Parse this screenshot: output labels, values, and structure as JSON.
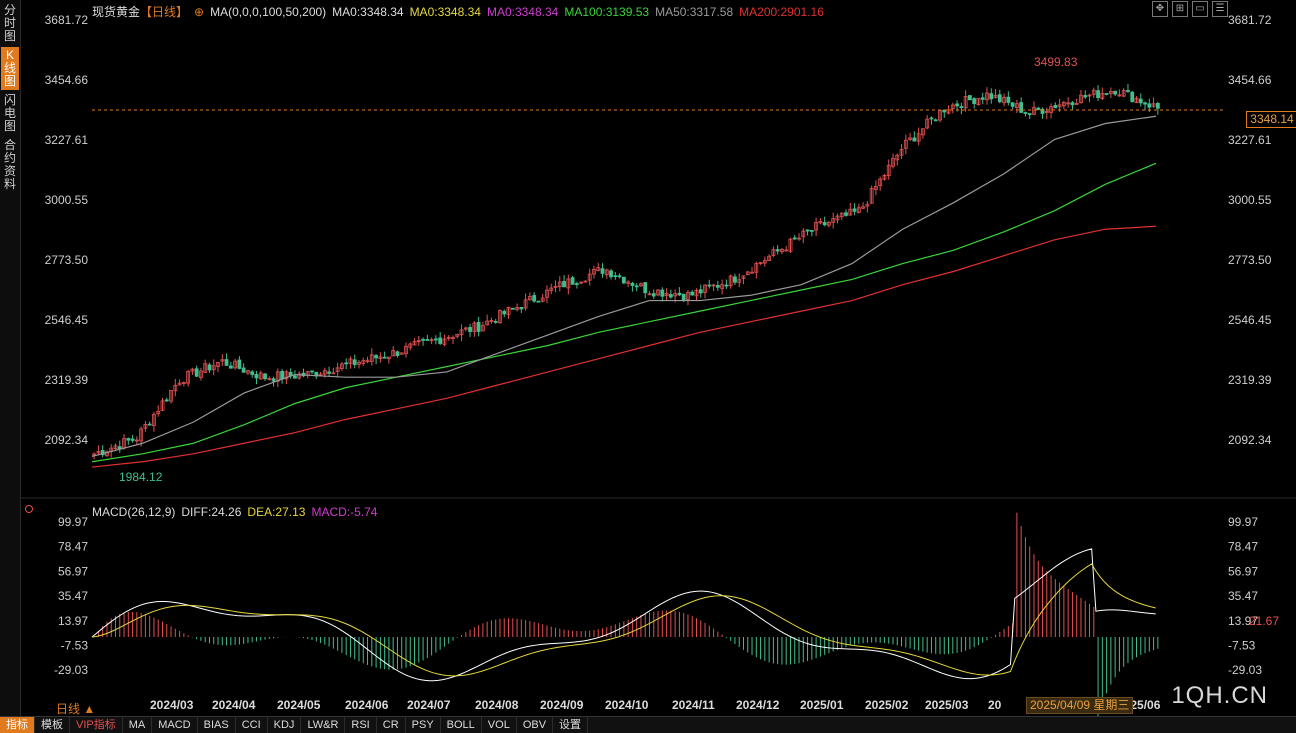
{
  "sidebar": {
    "tabs": [
      {
        "label": "分时图",
        "active": false
      },
      {
        "label": "K线图",
        "active": true
      },
      {
        "label": "闪电图",
        "active": false
      },
      {
        "label": "合约资料",
        "active": false
      }
    ]
  },
  "legend": {
    "symbol": "现货黄金",
    "period": "【日线】",
    "add_icon": "⊕",
    "ma_params": "MA(0,0,0,100,50,200)",
    "ma0_a": "MA0:3348.34",
    "ma0_b": "MA0:3348.34",
    "ma0_c": "MA0:3348.34",
    "ma100": "MA100:3139.53",
    "ma50": "MA50:3317.58",
    "ma200": "MA200:2901.16"
  },
  "colors": {
    "up": "#e45050",
    "down": "#3fbf8f",
    "ma100": "#3ad43a",
    "ma50": "#9a9a9a",
    "ma200": "#e03030",
    "dif": "#ffffff",
    "dea": "#e6d83a",
    "accent": "#e07a1f"
  },
  "price_axis": {
    "labels": [
      "3681.72",
      "3454.66",
      "3227.61",
      "3000.55",
      "2773.50",
      "2546.45",
      "2319.39",
      "2092.34"
    ]
  },
  "current_price": "3348.14",
  "high_label": "3499.83",
  "low_label": "1984.12",
  "macd_legend": {
    "params": "MACD(26,12,9)",
    "diff": "DIFF:24.26",
    "dea": "DEA:27.13",
    "macd": "MACD:-5.74"
  },
  "macd_axis": {
    "labels": [
      "99.97",
      "78.47",
      "56.97",
      "35.47",
      "13.97",
      "-7.53",
      "-29.03"
    ]
  },
  "macd_current": "21.67",
  "x_axis": {
    "labels": [
      "2024/03",
      "2024/04",
      "2024/05",
      "2024/06",
      "2024/07",
      "2024/08",
      "2024/09",
      "2024/10",
      "2024/11",
      "2024/12",
      "2025/01",
      "2025/02",
      "2025/03",
      "20",
      "2025/06"
    ]
  },
  "crosshair_date": "2025/04/09 星期三",
  "period_label": "日线 ▲",
  "watermark": "1QH.CN",
  "toolbar_icons": [
    "expand-icon",
    "grid-icon",
    "window-icon",
    "menu-icon"
  ],
  "bottom_bar": {
    "items": [
      {
        "label": "指标",
        "active": true,
        "vip": false
      },
      {
        "label": "模板",
        "active": false,
        "vip": false
      },
      {
        "label": "VIP指标",
        "active": false,
        "vip": true
      },
      {
        "label": "MA",
        "active": false,
        "vip": false
      },
      {
        "label": "MACD",
        "active": false,
        "vip": false
      },
      {
        "label": "BIAS",
        "active": false,
        "vip": false
      },
      {
        "label": "CCI",
        "active": false,
        "vip": false
      },
      {
        "label": "KDJ",
        "active": false,
        "vip": false
      },
      {
        "label": "LW&R",
        "active": false,
        "vip": false
      },
      {
        "label": "RSI",
        "active": false,
        "vip": false
      },
      {
        "label": "CR",
        "active": false,
        "vip": false
      },
      {
        "label": "PSY",
        "active": false,
        "vip": false
      },
      {
        "label": "BOLL",
        "active": false,
        "vip": false
      },
      {
        "label": "VOL",
        "active": false,
        "vip": false
      },
      {
        "label": "OBV",
        "active": false,
        "vip": false
      },
      {
        "label": "设置",
        "active": false,
        "vip": false
      }
    ]
  },
  "chart_data": {
    "type": "line",
    "ylim": [
      1984.12,
      3681.72
    ],
    "series": [
      {
        "name": "MA100",
        "values": [
          2010,
          2040,
          2080,
          2150,
          2230,
          2290,
          2330,
          2370,
          2410,
          2450,
          2500,
          2540,
          2580,
          2620,
          2660,
          2700,
          2760,
          2810,
          2880,
          2960,
          3060,
          3139.53
        ]
      },
      {
        "name": "MA50",
        "values": [
          2030,
          2080,
          2160,
          2270,
          2340,
          2330,
          2330,
          2350,
          2420,
          2490,
          2560,
          2620,
          2620,
          2640,
          2680,
          2760,
          2890,
          2990,
          3100,
          3230,
          3290,
          3317.58
        ]
      },
      {
        "name": "MA200",
        "values": [
          1990,
          2010,
          2040,
          2080,
          2120,
          2170,
          2210,
          2250,
          2300,
          2350,
          2400,
          2450,
          2500,
          2540,
          2580,
          2620,
          2680,
          2730,
          2790,
          2850,
          2890,
          2901.16
        ]
      }
    ],
    "price_values": [
      2040,
      2100,
      2320,
      2390,
      2330,
      2340,
      2380,
      2420,
      2470,
      2520,
      2600,
      2680,
      2740,
      2660,
      2640,
      2700,
      2800,
      2900,
      2960,
      3200,
      3350,
      3400,
      3330,
      3380,
      3420,
      3348.14
    ]
  }
}
